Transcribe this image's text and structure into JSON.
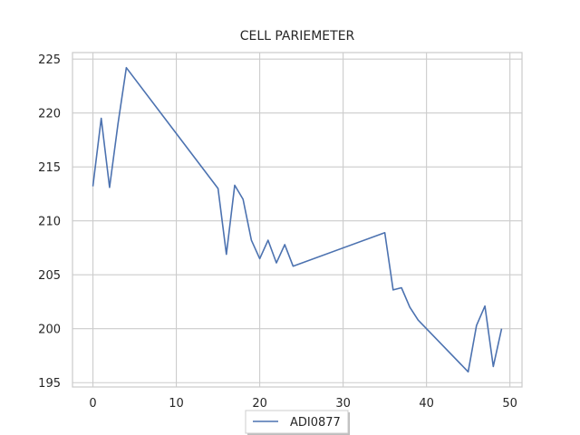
{
  "chart_data": {
    "type": "line",
    "title": "CELL PARIEMETER",
    "xlabel": "",
    "ylabel": "",
    "xlim": [
      -2.45,
      51.45
    ],
    "ylim": [
      194.6,
      225.6
    ],
    "x_ticks": [
      0,
      10,
      20,
      30,
      40,
      50
    ],
    "y_ticks": [
      195,
      200,
      205,
      210,
      215,
      220,
      225
    ],
    "grid": true,
    "legend_position": "bottom-center",
    "series": [
      {
        "name": "ADI0877",
        "color": "#4c72b0",
        "x": [
          0,
          1,
          2,
          3,
          4,
          15,
          16,
          17,
          18,
          19,
          20,
          21,
          22,
          23,
          24,
          35,
          36,
          37,
          38,
          39,
          45,
          46,
          47,
          48,
          49
        ],
        "y": [
          213.2,
          219.5,
          213.1,
          219.0,
          224.2,
          213.0,
          206.9,
          213.3,
          212.0,
          208.2,
          206.5,
          208.2,
          206.1,
          207.8,
          205.8,
          208.9,
          203.6,
          203.8,
          202.0,
          200.8,
          196.0,
          200.3,
          202.1,
          196.5,
          200.0
        ]
      }
    ]
  }
}
